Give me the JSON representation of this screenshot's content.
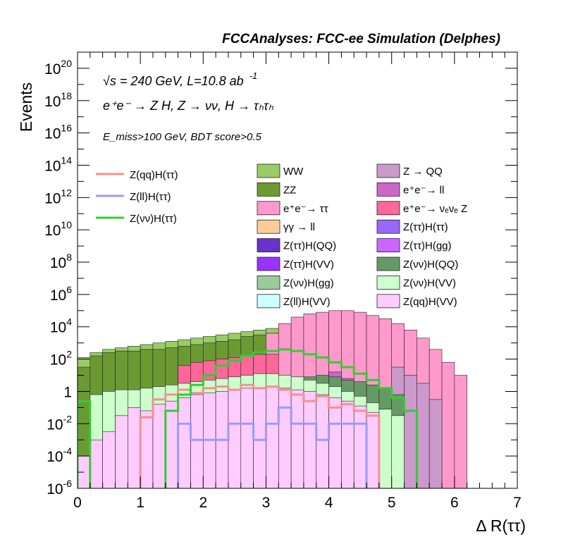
{
  "chart_data": {
    "type": "bar",
    "title": "FCCAnalyses: FCC-ee Simulation (Delphes)",
    "xlabel": "Δ R(ττ)",
    "ylabel": "Events",
    "log_y": true,
    "xlim": [
      0,
      7
    ],
    "ylim_exponent": [
      -6,
      21
    ],
    "x_ticks": [
      "0",
      "1",
      "2",
      "3",
      "4",
      "5",
      "6",
      "7"
    ],
    "y_ticks": [
      {
        "base": "10",
        "exp": "20",
        "e": 20
      },
      {
        "base": "10",
        "exp": "18",
        "e": 18
      },
      {
        "base": "10",
        "exp": "16",
        "e": 16
      },
      {
        "base": "10",
        "exp": "14",
        "e": 14
      },
      {
        "base": "10",
        "exp": "12",
        "e": 12
      },
      {
        "base": "10",
        "exp": "10",
        "e": 10
      },
      {
        "base": "10",
        "exp": "8",
        "e": 8
      },
      {
        "base": "10",
        "exp": "6",
        "e": 6
      },
      {
        "base": "10",
        "exp": "4",
        "e": 4
      },
      {
        "base": "10",
        "exp": "2",
        "e": 2
      },
      {
        "base": "1",
        "exp": "",
        "e": 0
      },
      {
        "base": "10",
        "exp": "-2",
        "e": -2
      },
      {
        "base": "10",
        "exp": "-4",
        "e": -4
      },
      {
        "base": "10",
        "exp": "-6",
        "e": -6
      }
    ],
    "annotations": {
      "line1": "√s = 240 GeV, L=10.8 ab",
      "line1_sup": "-1",
      "line2": "e⁺e⁻ → Z H, Z → νν, H → τₕτₕ",
      "line3": "E_miss>100 GeV, BDT score>0.5"
    },
    "signals": [
      {
        "name": "Z(qq)H(ττ)",
        "color": "#f4908f",
        "x": [
          1.1,
          1.3,
          1.5,
          1.7,
          1.9,
          2.1,
          2.3,
          2.5,
          2.7,
          2.9,
          3.1,
          3.3,
          3.5,
          3.7,
          3.9,
          4.1,
          4.3,
          4.5,
          4.7
        ],
        "log10y": [
          -1.6,
          -0.5,
          -0.2,
          0.1,
          -0.1,
          0.2,
          0.3,
          0.1,
          0.4,
          0.2,
          0.3,
          0.1,
          -0.2,
          -0.6,
          -0.3,
          -1.0,
          -0.8,
          -1.2,
          -1.5
        ]
      },
      {
        "name": "Z(ll)H(ττ)",
        "color": "#9999ff",
        "x": [
          1.7,
          1.9,
          2.1,
          2.3,
          2.5,
          2.7,
          2.9,
          3.1,
          3.3,
          3.5,
          3.7,
          3.9,
          4.1,
          4.3,
          4.5
        ],
        "log10y": [
          -2.0,
          -3.0,
          -3.0,
          -3.0,
          -2.0,
          -2.0,
          -3.0,
          -2.0,
          -1.0,
          -2.0,
          -2.0,
          -3.0,
          -2.0,
          -2.0,
          -2.0
        ]
      },
      {
        "name": "Z(νν)H(ττ)",
        "color": "#33cc33",
        "x": [
          0.1,
          1.5,
          1.7,
          1.9,
          2.1,
          2.3,
          2.5,
          2.7,
          2.9,
          3.1,
          3.3,
          3.5,
          3.7,
          3.9,
          4.1,
          4.3,
          4.5,
          4.7,
          4.9,
          5.1,
          5.3
        ],
        "log10y": [
          -0.6,
          -1.2,
          -0.2,
          0.4,
          1.0,
          1.6,
          1.9,
          2.2,
          2.4,
          2.5,
          2.6,
          2.5,
          2.3,
          2.1,
          1.8,
          1.5,
          1.1,
          0.7,
          0.2,
          -0.4,
          -1.2
        ]
      }
    ],
    "backgrounds": [
      {
        "name": "WW",
        "color": "#99cc66",
        "x": [
          0.1,
          0.3,
          0.5,
          0.7,
          0.9,
          1.1,
          1.3,
          1.5,
          1.7,
          1.9,
          2.1,
          2.3,
          2.5,
          2.7,
          2.9,
          3.1,
          3.3,
          3.5,
          3.7,
          3.9,
          4.1,
          4.3,
          4.5,
          4.7,
          4.9,
          5.1,
          5.3,
          5.5,
          5.7
        ],
        "log10y": [
          2.1,
          2.4,
          2.6,
          2.7,
          2.8,
          2.9,
          3.0,
          3.1,
          3.2,
          3.3,
          3.4,
          3.5,
          3.6,
          3.7,
          3.8,
          3.9,
          4.0,
          4.0,
          3.9,
          3.8,
          3.6,
          3.3,
          3.0,
          2.7,
          2.4,
          2.0,
          1.5,
          0.9,
          0.2
        ]
      },
      {
        "name": "ZZ",
        "color": "#6b9a33",
        "x": [
          0.1,
          0.3,
          0.5,
          0.7,
          0.9,
          1.1,
          1.3,
          1.5,
          1.7,
          1.9,
          2.1,
          2.3,
          2.5,
          2.7,
          2.9,
          3.1,
          3.3,
          3.5,
          3.7,
          3.9,
          4.1,
          4.3,
          4.5,
          4.7,
          4.9,
          5.1,
          5.3
        ],
        "log10y": [
          1.5,
          2.2,
          2.4,
          2.5,
          2.5,
          2.6,
          2.6,
          2.7,
          2.8,
          2.9,
          3.0,
          3.1,
          3.2,
          3.4,
          3.5,
          3.6,
          3.4,
          3.2,
          3.0,
          2.8,
          2.5,
          2.2,
          1.9,
          1.5,
          1.0,
          0.4,
          -0.4
        ]
      },
      {
        "name": "e⁺e⁻→ ττ",
        "color": "#ff99cc",
        "x": [
          3.1,
          3.3,
          3.5,
          3.7,
          3.9,
          4.1,
          4.3,
          4.5,
          4.7,
          4.9,
          5.1,
          5.3,
          5.5,
          5.7,
          5.9,
          6.1
        ],
        "log10y": [
          3.6,
          4.2,
          4.6,
          4.8,
          4.9,
          5.0,
          5.0,
          4.9,
          4.7,
          4.5,
          4.2,
          3.8,
          3.3,
          2.6,
          1.8,
          1.0
        ]
      },
      {
        "name": "γγ → ll",
        "color": "#ffcc99",
        "x": [
          2.9,
          3.1,
          3.3,
          3.5,
          3.7,
          3.9
        ],
        "log10y": [
          0.0,
          -0.5,
          -1.0,
          -0.5,
          -1.0,
          -1.5
        ]
      },
      {
        "name": "Z(ττ)H(QQ)",
        "color": "#6633cc",
        "x": [
          1.7,
          1.9,
          2.1,
          2.3,
          2.5,
          2.7,
          2.9,
          3.1,
          3.3,
          3.5,
          3.7,
          3.9,
          4.1,
          4.3
        ],
        "log10y": [
          -2.5,
          -2.0,
          -1.0,
          -1.5,
          -1.5,
          -2.0,
          -1.0,
          -1.5,
          -2.0,
          -2.0,
          -2.5,
          -1.5,
          -2.0,
          -3.0
        ]
      },
      {
        "name": "Z(ττ)H(VV)",
        "color": "#9933ff",
        "x": [
          0.7,
          0.9,
          1.1,
          1.3,
          1.9,
          2.1,
          2.3,
          2.5,
          2.7,
          2.9,
          3.1,
          3.3,
          3.5,
          3.7,
          3.9,
          4.1,
          4.3,
          4.5
        ],
        "log10y": [
          -2.0,
          -2.5,
          -1.5,
          -2.0,
          -0.5,
          -0.3,
          0.0,
          0.2,
          0.3,
          0.5,
          0.4,
          0.3,
          0.0,
          -0.2,
          -0.5,
          -0.8,
          -1.0,
          -1.5
        ]
      },
      {
        "name": "Z(νν)H(gg)",
        "color": "#99cc99",
        "x": [
          2.9,
          3.1,
          3.3,
          3.5,
          3.7,
          3.9,
          4.1,
          4.3,
          4.5,
          4.7
        ],
        "log10y": [
          0.5,
          0.8,
          0.7,
          0.9,
          0.6,
          0.4,
          0.3,
          0.2,
          -0.2,
          -0.5
        ]
      },
      {
        "name": "Z(ll)H(VV)",
        "color": "#ccffff",
        "x": [
          2.7,
          2.9,
          3.1,
          3.3,
          3.5
        ],
        "log10y": [
          -3.0,
          -2.5,
          -3.0,
          -3.5,
          -4.0
        ]
      },
      {
        "name": "Z → QQ",
        "color": "#cc99cc",
        "x": [
          5.1,
          5.3,
          5.5,
          5.7
        ],
        "log10y": [
          1.5,
          1.0,
          0.5,
          -0.5
        ]
      },
      {
        "name": "e⁺e⁻→ ll",
        "color": "#cc66cc",
        "x": [
          4.1,
          4.3,
          4.5,
          4.7
        ],
        "log10y": [
          1.2,
          0.8,
          0.4,
          0.0
        ]
      },
      {
        "name": "e⁺e⁻→ νₑνₑ Z",
        "color": "#ff6699",
        "x": [
          1.7,
          1.9,
          2.1,
          2.3,
          2.5,
          2.7,
          2.9,
          3.1
        ],
        "log10y": [
          1.6,
          1.8,
          1.9,
          2.0,
          2.1,
          2.2,
          2.3,
          2.3
        ]
      },
      {
        "name": "Z(ττ)H(ττ)",
        "color": "#9966ff",
        "x": [
          2.3,
          2.5,
          2.7,
          2.9,
          3.1,
          3.3,
          3.5,
          3.7,
          3.9,
          4.1
        ],
        "log10y": [
          0.4,
          0.6,
          0.7,
          0.8,
          0.9,
          0.9,
          0.8,
          0.6,
          0.4,
          0.1
        ]
      },
      {
        "name": "Z(ττ)H(gg)",
        "color": "#cc66ff",
        "x": [
          1.9,
          2.1,
          2.3,
          2.5,
          2.7,
          2.9,
          3.1,
          3.3,
          3.5,
          3.7,
          3.9,
          4.1,
          4.3,
          4.5,
          4.7,
          4.9
        ],
        "log10y": [
          -1.0,
          -0.6,
          -0.2,
          0.1,
          0.2,
          0.4,
          0.5,
          0.4,
          0.3,
          0.1,
          -0.1,
          -0.4,
          -0.8,
          -1.2,
          -1.6,
          -2.0
        ]
      },
      {
        "name": "Z(νν)H(QQ)",
        "color": "#669966",
        "x": [
          2.9,
          3.1,
          3.3,
          3.5,
          3.7,
          3.9,
          4.1,
          4.3,
          4.5,
          4.7,
          4.9,
          5.1
        ],
        "log10y": [
          0.3,
          0.4,
          0.6,
          0.7,
          0.9,
          1.0,
          0.9,
          0.7,
          0.6,
          0.4,
          0.2,
          -0.2
        ]
      },
      {
        "name": "Z(νν)H(VV)",
        "color": "#ccffcc",
        "x": [
          0.1,
          0.3,
          0.5,
          0.7,
          0.9,
          1.1,
          1.3,
          1.5,
          1.7,
          1.9,
          2.1,
          2.3,
          2.5,
          2.7,
          2.9,
          3.1,
          3.3,
          3.5,
          3.7,
          3.9,
          4.1,
          4.3,
          4.5,
          4.7,
          4.9,
          5.1
        ],
        "log10y": [
          -4.0,
          -0.2,
          0.0,
          0.1,
          0.1,
          0.2,
          0.3,
          0.4,
          0.5,
          0.6,
          0.7,
          0.8,
          0.9,
          1.0,
          1.1,
          1.1,
          1.0,
          0.9,
          0.7,
          0.5,
          0.3,
          0.0,
          -0.3,
          -0.7,
          -1.1,
          -1.5
        ]
      },
      {
        "name": "Z(qq)H(VV)",
        "color": "#ffccff",
        "x": [
          0.1,
          0.3,
          0.5,
          0.7,
          0.9,
          1.1,
          1.3,
          1.5,
          1.7,
          1.9,
          2.1,
          2.3,
          2.5,
          2.7,
          2.9,
          3.1,
          3.3,
          3.5,
          3.7,
          3.9,
          4.1,
          4.3,
          4.5,
          4.7
        ],
        "log10y": [
          -4.0,
          -3.0,
          -2.5,
          -1.5,
          -1.0,
          -1.2,
          -0.8,
          -0.6,
          -0.4,
          -0.2,
          -0.1,
          0.0,
          0.1,
          0.2,
          0.2,
          0.3,
          0.2,
          0.1,
          0.0,
          -0.2,
          -0.4,
          -0.6,
          -0.9,
          -1.3
        ]
      }
    ],
    "legend": [
      [
        "WW",
        "Z → QQ"
      ],
      [
        "ZZ",
        "e⁺e⁻→ ll"
      ],
      [
        "e⁺e⁻→ ττ",
        "e⁺e⁻→ νₑνₑ Z"
      ],
      [
        "γγ → ll",
        "Z(ττ)H(ττ)"
      ],
      [
        "Z(ττ)H(QQ)",
        "Z(ττ)H(gg)"
      ],
      [
        "Z(ττ)H(VV)",
        "Z(νν)H(QQ)"
      ],
      [
        "Z(νν)H(gg)",
        "Z(νν)H(VV)"
      ],
      [
        "Z(ll)H(VV)",
        "Z(qq)H(VV)"
      ]
    ],
    "grid": false,
    "legend_placement": "inside-top"
  }
}
